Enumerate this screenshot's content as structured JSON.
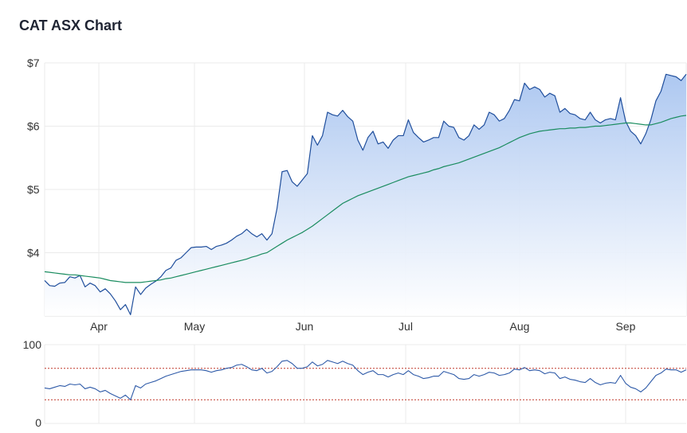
{
  "page": {
    "title": "CAT ASX Chart"
  },
  "colors": {
    "price_line": "#1f4e9c",
    "area_top": "#a9c5f0",
    "area_bottom": "#ffffff",
    "ma_line": "#1a8c5f",
    "rsi_line": "#2e5aa8",
    "rsi_threshold": "#c0392b",
    "grid": "#ebebeb"
  },
  "chart_data": [
    {
      "type": "area",
      "name": "price",
      "ylim": [
        3.0,
        7.0
      ],
      "y_ticks": [
        4,
        5,
        6,
        7
      ],
      "y_tick_labels": [
        "$4",
        "$5",
        "$6",
        "$7"
      ],
      "x_ticks": [
        "Apr",
        "May",
        "Jun",
        "Jul",
        "Aug",
        "Sep"
      ],
      "grid": true,
      "series": [
        {
          "values": [
            3.56,
            3.48,
            3.47,
            3.52,
            3.53,
            3.62,
            3.6,
            3.64,
            3.46,
            3.52,
            3.48,
            3.38,
            3.43,
            3.35,
            3.24,
            3.1,
            3.18,
            3.02,
            3.46,
            3.34,
            3.44,
            3.5,
            3.55,
            3.62,
            3.72,
            3.76,
            3.88,
            3.92,
            4.0,
            4.08,
            4.09,
            4.09,
            4.1,
            4.05,
            4.1,
            4.12,
            4.15,
            4.2,
            4.26,
            4.3,
            4.37,
            4.3,
            4.25,
            4.3,
            4.2,
            4.3,
            4.7,
            5.28,
            5.3,
            5.12,
            5.05,
            5.15,
            5.25,
            5.85,
            5.7,
            5.85,
            6.22,
            6.18,
            6.16,
            6.25,
            6.15,
            6.08,
            5.78,
            5.62,
            5.82,
            5.92,
            5.72,
            5.75,
            5.65,
            5.78,
            5.85,
            5.85,
            6.1,
            5.9,
            5.82,
            5.75,
            5.78,
            5.82,
            5.82,
            6.08,
            6.0,
            5.98,
            5.82,
            5.78,
            5.85,
            6.02,
            5.95,
            6.02,
            6.22,
            6.18,
            6.08,
            6.12,
            6.25,
            6.42,
            6.4,
            6.68,
            6.58,
            6.62,
            6.58,
            6.46,
            6.52,
            6.48,
            6.22,
            6.28,
            6.2,
            6.18,
            6.12,
            6.1,
            6.22,
            6.1,
            6.05,
            6.1,
            6.12,
            6.1,
            6.45,
            6.08,
            5.92,
            5.85,
            5.72,
            5.88,
            6.1,
            6.4,
            6.55,
            6.82,
            6.8,
            6.78,
            6.72,
            6.82
          ]
        },
        {
          "values": [
            3.7,
            3.69,
            3.68,
            3.67,
            3.66,
            3.65,
            3.65,
            3.64,
            3.63,
            3.62,
            3.61,
            3.6,
            3.58,
            3.56,
            3.55,
            3.54,
            3.53,
            3.53,
            3.53,
            3.53,
            3.54,
            3.55,
            3.56,
            3.57,
            3.59,
            3.6,
            3.62,
            3.64,
            3.66,
            3.68,
            3.7,
            3.72,
            3.74,
            3.76,
            3.78,
            3.8,
            3.82,
            3.84,
            3.86,
            3.88,
            3.9,
            3.93,
            3.95,
            3.98,
            4.0,
            4.05,
            4.1,
            4.15,
            4.2,
            4.24,
            4.28,
            4.32,
            4.37,
            4.42,
            4.48,
            4.54,
            4.6,
            4.66,
            4.72,
            4.78,
            4.82,
            4.86,
            4.9,
            4.93,
            4.96,
            4.99,
            5.02,
            5.05,
            5.08,
            5.11,
            5.14,
            5.17,
            5.2,
            5.22,
            5.24,
            5.26,
            5.28,
            5.31,
            5.33,
            5.36,
            5.38,
            5.4,
            5.42,
            5.45,
            5.48,
            5.51,
            5.54,
            5.57,
            5.6,
            5.63,
            5.66,
            5.7,
            5.74,
            5.78,
            5.82,
            5.85,
            5.88,
            5.9,
            5.92,
            5.93,
            5.94,
            5.95,
            5.96,
            5.96,
            5.97,
            5.97,
            5.98,
            5.98,
            5.99,
            6.0,
            6.0,
            6.01,
            6.02,
            6.03,
            6.04,
            6.05,
            6.05,
            6.04,
            6.03,
            6.02,
            6.02,
            6.04,
            6.06,
            6.09,
            6.12,
            6.14,
            6.16,
            6.17
          ]
        }
      ]
    },
    {
      "type": "line",
      "name": "oscillator",
      "ylim": [
        0,
        100
      ],
      "y_ticks": [
        0,
        100
      ],
      "y_tick_labels": [
        "0",
        "100"
      ],
      "threshold_lines": [
        70,
        30
      ],
      "grid": true,
      "series": [
        {
          "values": [
            45,
            44,
            46,
            48,
            47,
            50,
            49,
            50,
            44,
            46,
            44,
            40,
            42,
            38,
            35,
            32,
            36,
            30,
            48,
            45,
            50,
            52,
            54,
            57,
            60,
            62,
            64,
            66,
            67,
            68,
            68,
            68,
            67,
            65,
            67,
            68,
            70,
            71,
            74,
            75,
            72,
            68,
            67,
            70,
            64,
            66,
            72,
            79,
            80,
            76,
            70,
            70,
            72,
            78,
            73,
            75,
            80,
            78,
            76,
            79,
            76,
            74,
            67,
            62,
            65,
            67,
            62,
            62,
            59,
            62,
            64,
            62,
            67,
            62,
            60,
            57,
            58,
            60,
            60,
            66,
            64,
            62,
            57,
            56,
            57,
            62,
            60,
            62,
            65,
            64,
            61,
            62,
            64,
            69,
            68,
            71,
            67,
            68,
            67,
            63,
            65,
            64,
            57,
            59,
            56,
            55,
            53,
            52,
            57,
            52,
            49,
            51,
            52,
            51,
            61,
            51,
            46,
            44,
            40,
            45,
            53,
            61,
            64,
            69,
            68,
            68,
            65,
            68
          ]
        }
      ]
    }
  ]
}
